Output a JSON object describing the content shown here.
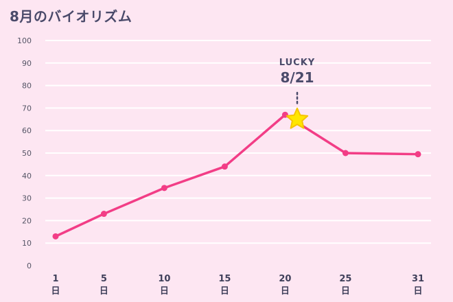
{
  "title": "8月のバイオリズム",
  "colors": {
    "background": "#fde6f2",
    "line": "#f23d86",
    "grid": "#ffffff",
    "star": "#ffe600",
    "star_stroke": "#f5c400",
    "text": "#4a4a6a"
  },
  "chart_data": {
    "type": "line",
    "title": "8月のバイオリズム",
    "xlabel": "",
    "ylabel": "",
    "ylim": [
      0,
      100
    ],
    "xlim": [
      1,
      31
    ],
    "yticks": [
      0,
      10,
      20,
      30,
      40,
      50,
      60,
      70,
      80,
      90,
      100
    ],
    "xticks": [
      1,
      5,
      10,
      15,
      20,
      25,
      31
    ],
    "x_tick_unit": "日",
    "grid": true,
    "series": [
      {
        "name": "",
        "points": [
          {
            "x": 1,
            "y": 13
          },
          {
            "x": 5,
            "y": 23
          },
          {
            "x": 10,
            "y": 34.5
          },
          {
            "x": 15,
            "y": 44
          },
          {
            "x": 20,
            "y": 67
          },
          {
            "x": 25,
            "y": 50
          },
          {
            "x": 31,
            "y": 49.5
          }
        ]
      }
    ],
    "annotation": {
      "label": "LUCKY",
      "text": "8/21",
      "x": 21,
      "y": 65,
      "marker": "star-icon"
    }
  }
}
